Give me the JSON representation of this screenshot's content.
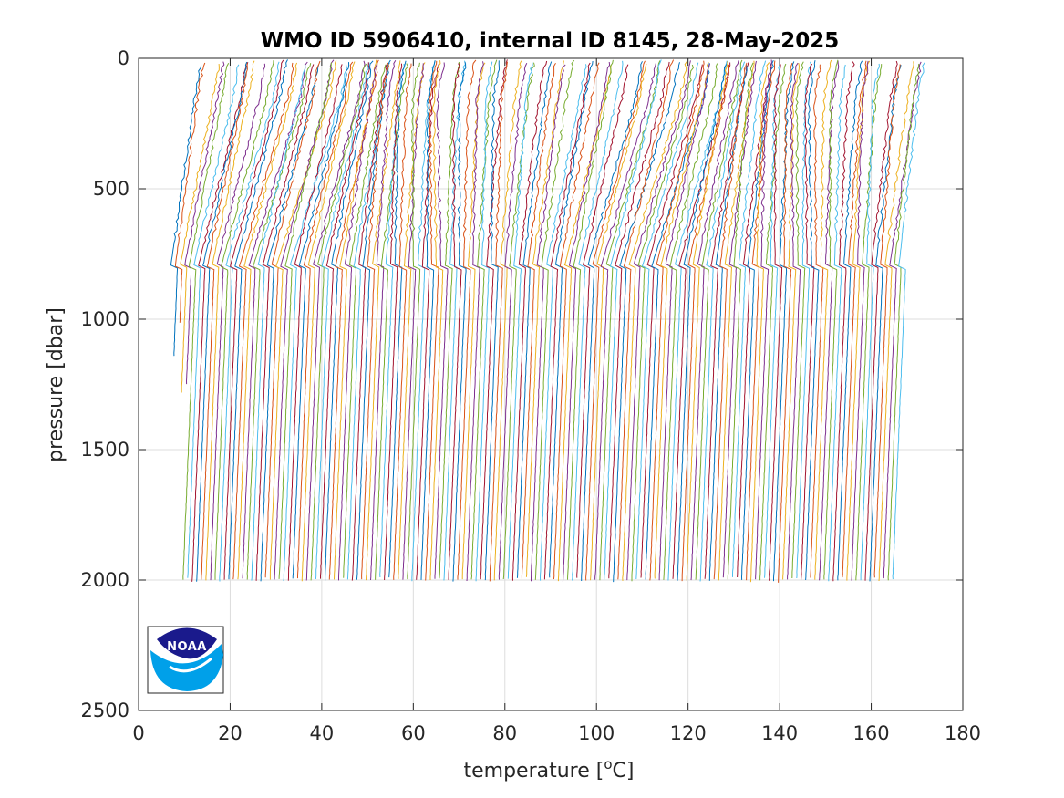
{
  "chart_data": {
    "type": "line",
    "title": "WMO ID 5906410, internal ID 8145, 28-May-2025",
    "xlabel_text": "temperature [",
    "xlabel_sup": "o",
    "xlabel_unit": "C]",
    "ylabel": "pressure [dbar]",
    "xlim": [
      0,
      180
    ],
    "ylim": [
      0,
      2500
    ],
    "y_reversed": true,
    "grid": true,
    "x_ticks": [
      0,
      20,
      40,
      60,
      80,
      100,
      120,
      140,
      160,
      180
    ],
    "y_ticks": [
      0,
      500,
      1000,
      1500,
      2000,
      2500
    ],
    "profile_count": 160,
    "profile_offset_start": 6.5,
    "profile_offset_end": 165.5,
    "series_colors": [
      "#0072bd",
      "#d95319",
      "#edb120",
      "#7e2f8e",
      "#77ac30",
      "#4dbeee",
      "#a2142f"
    ],
    "logo": {
      "text": "NOAA",
      "colors": {
        "top": "#1a1a8c",
        "bottom": "#00a0e9",
        "wave": "#ffffff"
      }
    }
  }
}
